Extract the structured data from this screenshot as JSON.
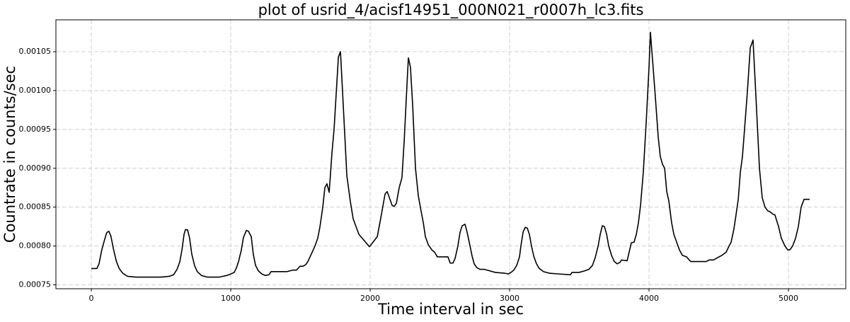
{
  "chart_data": {
    "type": "line",
    "title": "plot of usrid_4/acisf14951_000N021_r0007h_lc3.fits",
    "x_label": "Time interval in sec",
    "y_label": "Countrate in counts/sec",
    "color": "#000000",
    "grid": true,
    "xlim": [
      -254,
      5411
    ],
    "ylim": [
      0.000745,
      0.001091
    ],
    "xticks": [
      0,
      1000,
      2000,
      3000,
      4000,
      5000
    ],
    "yticks": [
      0.00075,
      {
        "value": 0.0008,
        "label": "0.00080"
      },
      0.00085,
      {
        "value": 0.0009,
        "label": "0.00090"
      },
      0.00095,
      {
        "value": 0.001,
        "label": "0.00100"
      },
      0.00105
    ],
    "x": [
      0,
      40,
      55,
      75,
      95,
      110,
      125,
      140,
      160,
      180,
      200,
      225,
      260,
      320,
      500,
      560,
      590,
      615,
      635,
      650,
      665,
      675,
      690,
      705,
      720,
      740,
      760,
      790,
      830,
      919,
      970,
      1000,
      1025,
      1041,
      1056,
      1076,
      1091,
      1112,
      1127,
      1147,
      1162,
      1178,
      1198,
      1223,
      1249,
      1274,
      1289,
      1401,
      1447,
      1472,
      1497,
      1518,
      1538,
      1553,
      1579,
      1604,
      1624,
      1640,
      1660,
      1675,
      1690,
      1706,
      1726,
      1741,
      1772,
      1787,
      1833,
      1858,
      1878,
      1919,
      1995,
      2051,
      2076,
      2107,
      2122,
      2158,
      2173,
      2188,
      2208,
      2228,
      2244,
      2259,
      2274,
      2289,
      2305,
      2325,
      2345,
      2365,
      2381,
      2396,
      2416,
      2442,
      2462,
      2482,
      2558,
      2574,
      2594,
      2609,
      2629,
      2645,
      2660,
      2680,
      2695,
      2716,
      2731,
      2746,
      2766,
      2787,
      2817,
      2858,
      2898,
      2964,
      2990,
      3010,
      3030,
      3051,
      3071,
      3081,
      3097,
      3112,
      3127,
      3142,
      3157,
      3173,
      3193,
      3213,
      3244,
      3284,
      3355,
      3437,
      3447,
      3498,
      3538,
      3569,
      3594,
      3614,
      3635,
      3650,
      3665,
      3680,
      3696,
      3711,
      3731,
      3751,
      3772,
      3792,
      3802,
      3843,
      3873,
      3893,
      3909,
      3924,
      3939,
      3959,
      3980,
      4000,
      4010,
      4025,
      4046,
      4066,
      4081,
      4097,
      4112,
      4127,
      4142,
      4162,
      4178,
      4198,
      4218,
      4239,
      4269,
      4299,
      4411,
      4431,
      4462,
      4492,
      4523,
      4553,
      4574,
      4589,
      4609,
      4624,
      4640,
      4655,
      4670,
      4685,
      4706,
      4726,
      4746,
      4766,
      4792,
      4812,
      4832,
      4853,
      4868,
      4888,
      4903,
      4929,
      4949,
      4975,
      4995,
      5010,
      5030,
      5051,
      5071,
      5091,
      5112,
      5152
    ],
    "values": [
      0.000771,
      0.000771,
      0.000777,
      0.000795,
      0.000808,
      0.000817,
      0.000819,
      0.000813,
      0.000795,
      0.00078,
      0.000771,
      0.000765,
      0.000761,
      0.00076,
      0.00076,
      0.000761,
      0.000763,
      0.00077,
      0.00078,
      0.000795,
      0.000815,
      0.000821,
      0.000821,
      0.00081,
      0.00079,
      0.000775,
      0.000767,
      0.000762,
      0.00076,
      0.00076,
      0.000762,
      0.000764,
      0.000766,
      0.000772,
      0.00078,
      0.000795,
      0.000811,
      0.00082,
      0.000819,
      0.000812,
      0.000789,
      0.000775,
      0.000768,
      0.000764,
      0.000762,
      0.000763,
      0.000767,
      0.000767,
      0.000769,
      0.000769,
      0.000774,
      0.000774,
      0.000776,
      0.00078,
      0.00079,
      0.0008,
      0.00081,
      0.000825,
      0.00085,
      0.000875,
      0.00088,
      0.000869,
      0.00092,
      0.00095,
      0.001043,
      0.00105,
      0.00089,
      0.000857,
      0.000835,
      0.000815,
      0.000799,
      0.000812,
      0.000836,
      0.000867,
      0.00087,
      0.000852,
      0.000851,
      0.000855,
      0.000875,
      0.000888,
      0.000935,
      0.00099,
      0.001042,
      0.00103,
      0.00098,
      0.0009,
      0.000865,
      0.000845,
      0.00083,
      0.000812,
      0.000802,
      0.000795,
      0.000792,
      0.000786,
      0.000786,
      0.000778,
      0.000778,
      0.000784,
      0.0008,
      0.000818,
      0.000826,
      0.000828,
      0.000818,
      0.0008,
      0.000787,
      0.000777,
      0.000772,
      0.00077,
      0.00077,
      0.000768,
      0.000766,
      0.000765,
      0.000764,
      0.000766,
      0.000769,
      0.000775,
      0.000786,
      0.0008,
      0.000818,
      0.000824,
      0.000823,
      0.000815,
      0.0008,
      0.000787,
      0.000777,
      0.000771,
      0.000767,
      0.000765,
      0.000764,
      0.000763,
      0.000766,
      0.000766,
      0.000768,
      0.00077,
      0.000775,
      0.000785,
      0.0008,
      0.000815,
      0.000826,
      0.000825,
      0.000815,
      0.0008,
      0.000788,
      0.00078,
      0.000777,
      0.000779,
      0.000782,
      0.000781,
      0.000804,
      0.000805,
      0.000815,
      0.00083,
      0.000852,
      0.000895,
      0.00096,
      0.00103,
      0.001075,
      0.00104,
      0.00099,
      0.00094,
      0.000915,
      0.000905,
      0.0009,
      0.00087,
      0.000858,
      0.00083,
      0.000815,
      0.000805,
      0.000795,
      0.000788,
      0.000786,
      0.00078,
      0.00078,
      0.000782,
      0.000782,
      0.000785,
      0.000788,
      0.000792,
      0.0008,
      0.000805,
      0.000822,
      0.00084,
      0.00086,
      0.000895,
      0.000915,
      0.00095,
      0.001,
      0.001055,
      0.001065,
      0.000995,
      0.0009,
      0.000862,
      0.00085,
      0.000845,
      0.000844,
      0.000841,
      0.00084,
      0.000825,
      0.00081,
      0.0008,
      0.000795,
      0.000795,
      0.0008,
      0.00081,
      0.000825,
      0.00085,
      0.00086,
      0.00086
    ]
  }
}
